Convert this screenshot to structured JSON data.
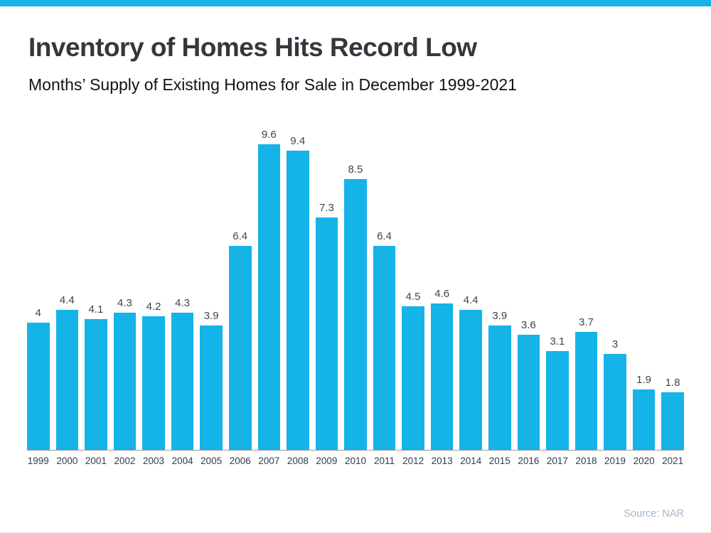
{
  "page": {
    "accent_color": "#14b3e8",
    "background_color": "#ffffff"
  },
  "header": {
    "title": "Inventory of Homes Hits Record Low",
    "subtitle": "Months’ Supply of Existing Homes for Sale in December 1999-2021"
  },
  "chart_data": {
    "type": "bar",
    "title": "Inventory of Homes Hits Record Low",
    "subtitle": "Months’ Supply of Existing Homes for Sale in December 1999-2021",
    "categories": [
      "1999",
      "2000",
      "2001",
      "2002",
      "2003",
      "2004",
      "2005",
      "2006",
      "2007",
      "2008",
      "2009",
      "2010",
      "2011",
      "2012",
      "2013",
      "2014",
      "2015",
      "2016",
      "2017",
      "2018",
      "2019",
      "2020",
      "2021"
    ],
    "values": [
      4,
      4.4,
      4.1,
      4.3,
      4.2,
      4.3,
      3.9,
      6.4,
      9.6,
      9.4,
      7.3,
      8.5,
      6.4,
      4.5,
      4.6,
      4.4,
      3.9,
      3.6,
      3.1,
      3.7,
      3,
      1.9,
      1.8
    ],
    "value_labels": [
      "4",
      "4.4",
      "4.1",
      "4.3",
      "4.2",
      "4.3",
      "3.9",
      "6.4",
      "9.6",
      "9.4",
      "7.3",
      "8.5",
      "6.4",
      "4.5",
      "4.6",
      "4.4",
      "3.9",
      "3.6",
      "3.1",
      "3.7",
      "3",
      "1.9",
      "1.8"
    ],
    "xlabel": "",
    "ylabel": "",
    "ylim": [
      0,
      9.6
    ],
    "grid": false,
    "legend": false,
    "bar_color": "#14b3e8",
    "data_labels_position": "above-bars"
  },
  "footer": {
    "source": "Source: NAR"
  }
}
